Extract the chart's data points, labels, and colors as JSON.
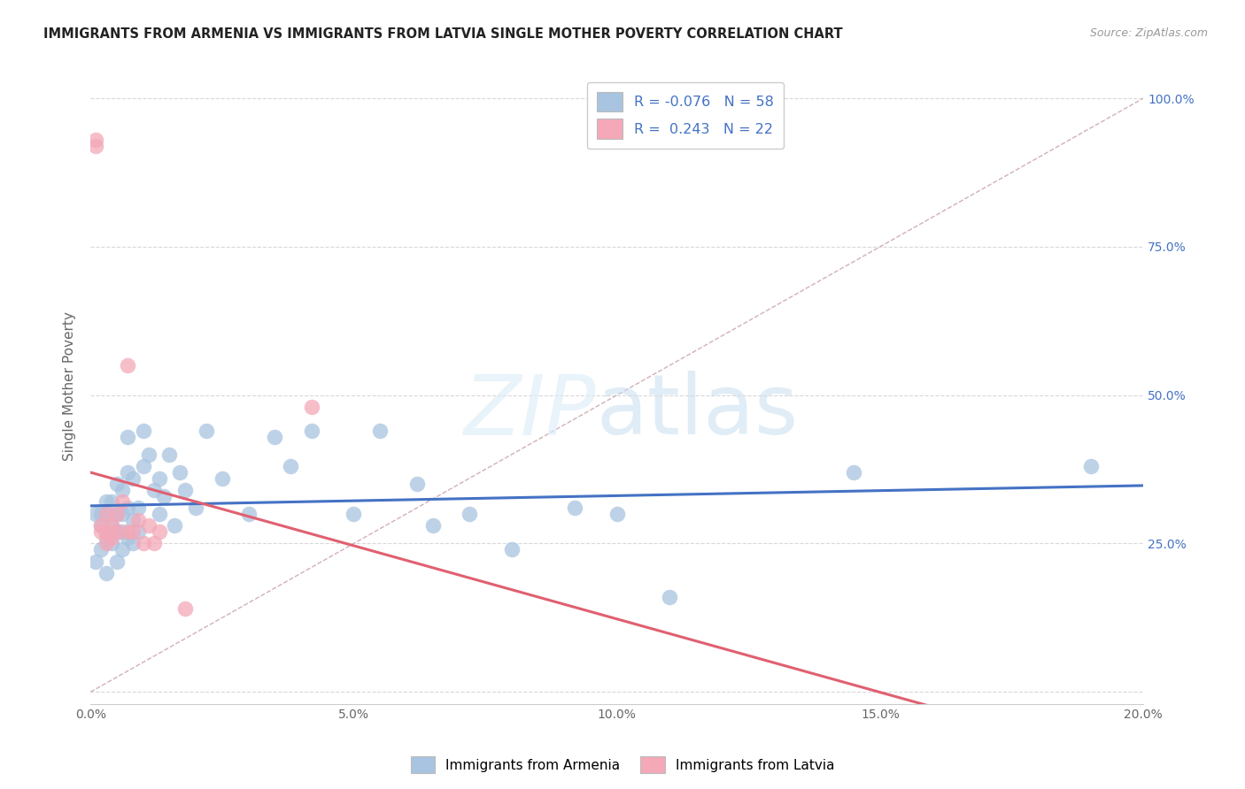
{
  "title": "IMMIGRANTS FROM ARMENIA VS IMMIGRANTS FROM LATVIA SINGLE MOTHER POVERTY CORRELATION CHART",
  "source": "Source: ZipAtlas.com",
  "ylabel": "Single Mother Poverty",
  "xlim": [
    0.0,
    0.2
  ],
  "ylim": [
    -0.02,
    1.05
  ],
  "ytick_vals_right": [
    0.25,
    0.5,
    0.75,
    1.0
  ],
  "legend_r_armenia": "-0.076",
  "legend_n_armenia": "58",
  "legend_r_latvia": "0.243",
  "legend_n_latvia": "22",
  "armenia_color": "#a8c4e0",
  "latvia_color": "#f4a8b8",
  "armenia_line_color": "#4472c4",
  "latvia_line_color": "#e06070",
  "diagonal_color": "#d0b0b8",
  "background_color": "#ffffff",
  "grid_color": "#d8d8d8",
  "armenia_x": [
    0.001,
    0.001,
    0.002,
    0.002,
    0.002,
    0.003,
    0.003,
    0.003,
    0.003,
    0.004,
    0.004,
    0.004,
    0.005,
    0.005,
    0.005,
    0.005,
    0.006,
    0.006,
    0.006,
    0.006,
    0.007,
    0.007,
    0.007,
    0.007,
    0.008,
    0.008,
    0.008,
    0.009,
    0.009,
    0.01,
    0.01,
    0.011,
    0.012,
    0.013,
    0.013,
    0.014,
    0.015,
    0.016,
    0.017,
    0.018,
    0.02,
    0.022,
    0.025,
    0.03,
    0.035,
    0.038,
    0.042,
    0.05,
    0.055,
    0.062,
    0.065,
    0.072,
    0.08,
    0.092,
    0.1,
    0.11,
    0.145,
    0.19
  ],
  "armenia_y": [
    0.3,
    0.22,
    0.28,
    0.3,
    0.24,
    0.32,
    0.3,
    0.26,
    0.2,
    0.32,
    0.28,
    0.25,
    0.35,
    0.3,
    0.27,
    0.22,
    0.34,
    0.3,
    0.27,
    0.24,
    0.43,
    0.37,
    0.31,
    0.26,
    0.36,
    0.29,
    0.25,
    0.31,
    0.27,
    0.44,
    0.38,
    0.4,
    0.34,
    0.3,
    0.36,
    0.33,
    0.4,
    0.28,
    0.37,
    0.34,
    0.31,
    0.44,
    0.36,
    0.3,
    0.43,
    0.38,
    0.44,
    0.3,
    0.44,
    0.35,
    0.28,
    0.3,
    0.24,
    0.31,
    0.3,
    0.16,
    0.37,
    0.38
  ],
  "latvia_x": [
    0.001,
    0.001,
    0.002,
    0.002,
    0.003,
    0.003,
    0.003,
    0.004,
    0.004,
    0.005,
    0.005,
    0.006,
    0.007,
    0.007,
    0.008,
    0.009,
    0.01,
    0.011,
    0.012,
    0.013,
    0.018,
    0.042
  ],
  "latvia_y": [
    0.92,
    0.93,
    0.28,
    0.27,
    0.3,
    0.27,
    0.25,
    0.28,
    0.26,
    0.3,
    0.27,
    0.32,
    0.55,
    0.27,
    0.27,
    0.29,
    0.25,
    0.28,
    0.25,
    0.27,
    0.14,
    0.48
  ]
}
